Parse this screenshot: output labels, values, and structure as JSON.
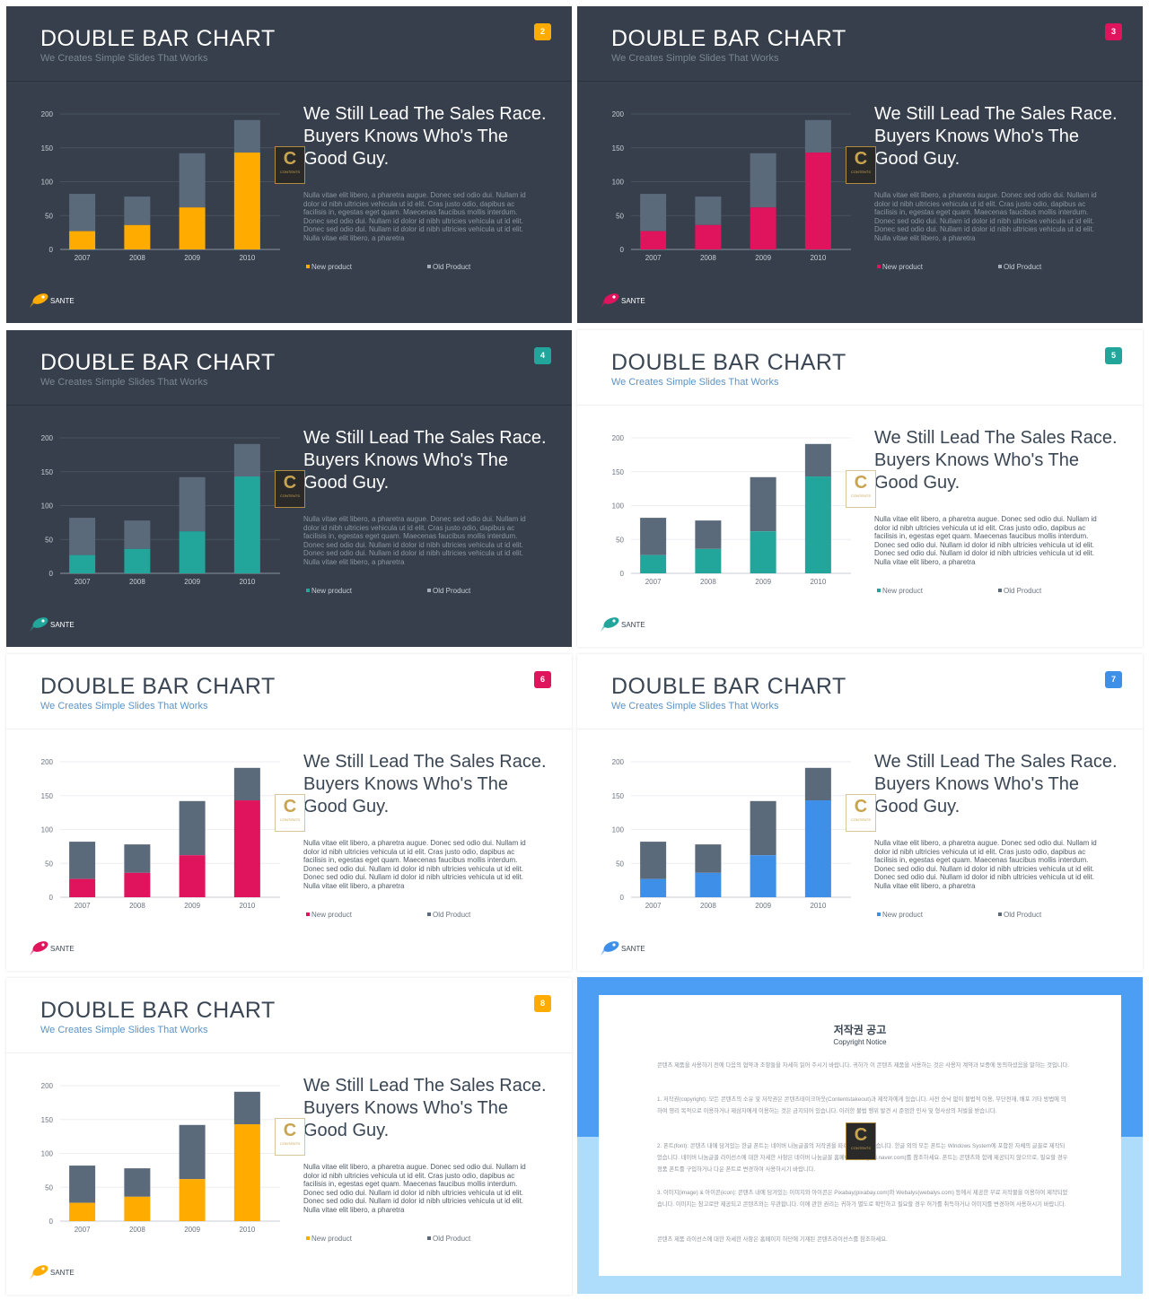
{
  "slides": [
    {
      "number": "2",
      "theme": "dark",
      "accent": "#ffab00"
    },
    {
      "number": "3",
      "theme": "dark",
      "accent": "#e0135d"
    },
    {
      "number": "4",
      "theme": "dark",
      "accent": "#22a59b"
    },
    {
      "number": "5",
      "theme": "light",
      "accent": "#22a59b"
    },
    {
      "number": "6",
      "theme": "light",
      "accent": "#e0135d"
    },
    {
      "number": "7",
      "theme": "light",
      "accent": "#3d8fe8"
    },
    {
      "number": "8",
      "theme": "light",
      "accent": "#ffab00"
    }
  ],
  "common": {
    "title": "DOUBLE BAR CHART",
    "subtitle": "We Creates Simple Slides That Works",
    "headline_lines": [
      "We Still Lead The Sales Race.",
      "Buyers Knows Who's The",
      "Good Guy."
    ],
    "body": "Nulla vitae elit libero, a pharetra augue. Donec sed odio dui. Nullam id dolor id nibh ultricies vehicula ut id elit. Cras justo odio, dapibus ac facilisis in, egestas eget quam. Maecenas faucibus mollis interdum. Donec sed odio dui. Nullam id dolor id nibh ultricies vehicula ut id elit. Donec sed odio dui. Nullam id dolor id nibh ultricies vehicula ut id elit. Nulla vitae elit libero, a pharetra",
    "brand": "SANTE",
    "watermark_mark": "C",
    "watermark_text": "CONTENTS"
  },
  "chart_data": {
    "type": "bar",
    "stacked": true,
    "categories": [
      "2007",
      "2008",
      "2009",
      "2010"
    ],
    "series": [
      {
        "name": "New product",
        "values": [
          27,
          36,
          62,
          143
        ]
      },
      {
        "name": "Old Product",
        "values": [
          55,
          42,
          80,
          48
        ]
      }
    ],
    "yticks": [
      0,
      50,
      100,
      150,
      200
    ],
    "ylim": [
      0,
      200
    ],
    "grid": true,
    "legend_position": "bottom",
    "old_color": "#5b6a7b"
  },
  "copyright": {
    "title": "저작권 공고",
    "subtitle": "Copyright Notice",
    "paragraphs": [
      "콘텐츠 제품을 사용하기 전에 다음의 협약과 조항들을 자세히 읽어 주시기 바랍니다. 귀하가 이 콘텐츠 제품을 사용하는 것은 사용자 계약과 보증에 동의하셨음을 말하는 것입니다.",
      "1. 저작권(copyright): 모든 콘텐츠의 소유 및 저작권은 콘텐츠테이크아웃(Contentstakeout)과 제작자에게 있습니다. 사전 승낙 없이 불법적 이용, 무단전재, 배포 기타 방법에 의하여 영리 목적으로 이용하거나 제삼자에게 이용하는 것은 금지되어 있습니다. 이러한 불법 행위 발견 시 준엄한 민사 및 형사상의 처벌을 받습니다.",
      "2. 폰트(font): 콘텐츠 내에 담겨있는 한글 폰트는 네이버 나눔글꼴의 저작권을 따르며 제작되었습니다. 한글 외의 모든 폰트는 Windows System에 포함된 자체의 글꼴로 제작되었습니다. 네이버 나눔글꼴 라이선스에 대한 자세한 사항은 네이버 나눔글꼴 홈페이지(hangeul.naver.com)를 참조하세요. 폰트는 콘텐츠와 함께 제공되지 않으므로, 필요할 경우 정품 폰트를 구입하거나 다운 폰트로 변경하여 사용하시기 바랍니다.",
      "3. 이미지(image) & 아이콘(icon): 콘텐츠 내에 담겨있는 이미지와 아이콘은 Pixabay(pixabay.com)와 Webalys(webalys.com) 등에서 제공한 무료 저작물을 이용하여 제작되었습니다. 이미지는 참고로만 제공되고 콘텐츠와는 무관합니다. 이에 관한 권리는 귀하가 별도로 확인하고 필요할 경우 허가를 취득하거나 이미지를 변경하여 사용하시기 바랍니다.",
      "콘텐츠 제품 라이선스에 대한 자세한 사항은 홈페이지 하단에 기재된 콘텐츠라이선스를 참조하세요."
    ]
  }
}
